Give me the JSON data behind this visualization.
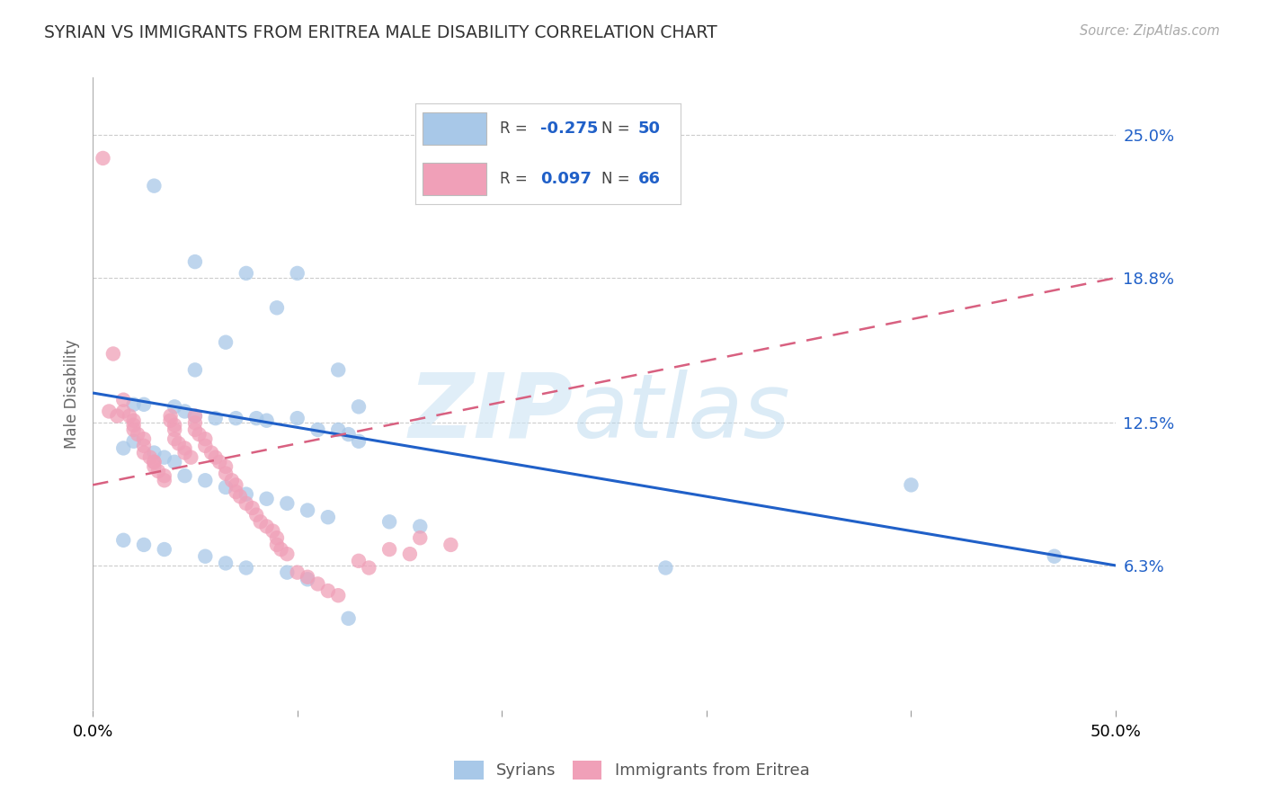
{
  "title": "SYRIAN VS IMMIGRANTS FROM ERITREA MALE DISABILITY CORRELATION CHART",
  "source": "Source: ZipAtlas.com",
  "ylabel": "Male Disability",
  "ytick_labels": [
    "25.0%",
    "18.8%",
    "12.5%",
    "6.3%"
  ],
  "ytick_values": [
    0.25,
    0.188,
    0.125,
    0.063
  ],
  "xlim": [
    0.0,
    0.5
  ],
  "ylim": [
    0.0,
    0.275
  ],
  "color_syrians": "#a8c8e8",
  "color_eritrea": "#f0a0b8",
  "color_trend_syrians": "#2060c8",
  "color_trend_eritrea": "#d86080",
  "legend_label1": "Syrians",
  "legend_label2": "Immigrants from Eritrea",
  "background_color": "#ffffff",
  "watermark_zip": "ZIP",
  "watermark_atlas": "atlas",
  "syrians_x": [
    0.03,
    0.05,
    0.09,
    0.1,
    0.065,
    0.075,
    0.05,
    0.12,
    0.13,
    0.02,
    0.025,
    0.04,
    0.045,
    0.05,
    0.06,
    0.07,
    0.08,
    0.085,
    0.1,
    0.11,
    0.12,
    0.125,
    0.13,
    0.02,
    0.015,
    0.03,
    0.035,
    0.04,
    0.045,
    0.055,
    0.065,
    0.075,
    0.085,
    0.095,
    0.105,
    0.115,
    0.145,
    0.16,
    0.4,
    0.47,
    0.28,
    0.015,
    0.025,
    0.035,
    0.055,
    0.065,
    0.075,
    0.095,
    0.105,
    0.125
  ],
  "syrians_y": [
    0.228,
    0.195,
    0.175,
    0.19,
    0.16,
    0.19,
    0.148,
    0.148,
    0.132,
    0.133,
    0.133,
    0.132,
    0.13,
    0.128,
    0.127,
    0.127,
    0.127,
    0.126,
    0.127,
    0.122,
    0.122,
    0.12,
    0.117,
    0.117,
    0.114,
    0.112,
    0.11,
    0.108,
    0.102,
    0.1,
    0.097,
    0.094,
    0.092,
    0.09,
    0.087,
    0.084,
    0.082,
    0.08,
    0.098,
    0.067,
    0.062,
    0.074,
    0.072,
    0.07,
    0.067,
    0.064,
    0.062,
    0.06,
    0.057,
    0.04
  ],
  "eritrea_x": [
    0.005,
    0.008,
    0.01,
    0.012,
    0.015,
    0.015,
    0.018,
    0.02,
    0.02,
    0.02,
    0.022,
    0.025,
    0.025,
    0.025,
    0.028,
    0.03,
    0.03,
    0.03,
    0.032,
    0.035,
    0.035,
    0.038,
    0.038,
    0.04,
    0.04,
    0.04,
    0.042,
    0.045,
    0.045,
    0.048,
    0.05,
    0.05,
    0.05,
    0.052,
    0.055,
    0.055,
    0.058,
    0.06,
    0.062,
    0.065,
    0.065,
    0.068,
    0.07,
    0.07,
    0.072,
    0.075,
    0.078,
    0.08,
    0.082,
    0.085,
    0.088,
    0.09,
    0.09,
    0.092,
    0.095,
    0.1,
    0.105,
    0.11,
    0.115,
    0.12,
    0.13,
    0.135,
    0.145,
    0.155,
    0.16,
    0.175
  ],
  "eritrea_y": [
    0.24,
    0.13,
    0.155,
    0.128,
    0.135,
    0.13,
    0.128,
    0.126,
    0.124,
    0.122,
    0.12,
    0.118,
    0.115,
    0.112,
    0.11,
    0.108,
    0.108,
    0.106,
    0.104,
    0.102,
    0.1,
    0.128,
    0.126,
    0.124,
    0.122,
    0.118,
    0.116,
    0.114,
    0.112,
    0.11,
    0.128,
    0.125,
    0.122,
    0.12,
    0.118,
    0.115,
    0.112,
    0.11,
    0.108,
    0.106,
    0.103,
    0.1,
    0.098,
    0.095,
    0.093,
    0.09,
    0.088,
    0.085,
    0.082,
    0.08,
    0.078,
    0.075,
    0.072,
    0.07,
    0.068,
    0.06,
    0.058,
    0.055,
    0.052,
    0.05,
    0.065,
    0.062,
    0.07,
    0.068,
    0.075,
    0.072
  ],
  "syrian_trend_x": [
    0.0,
    0.5
  ],
  "syrian_trend_y": [
    0.138,
    0.063
  ],
  "eritrea_trend_x": [
    0.0,
    0.5
  ],
  "eritrea_trend_y": [
    0.098,
    0.188
  ]
}
